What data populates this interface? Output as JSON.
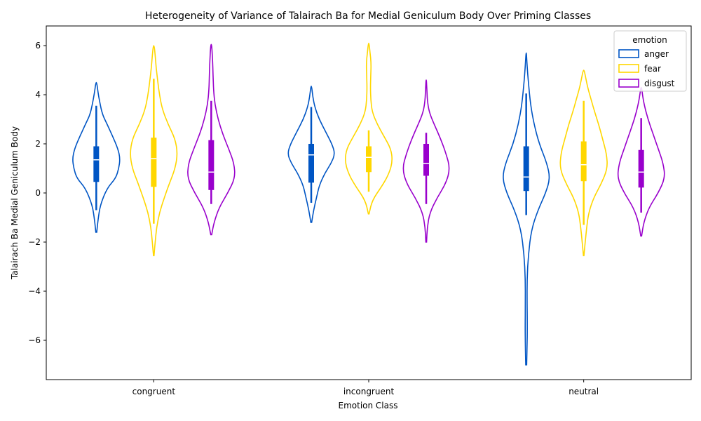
{
  "chart_data": {
    "type": "violin",
    "title": "Heterogeneity of Variance of Talairach Ba for Medial Geniculum Body Over Priming Classes",
    "xlabel": "Emotion Class",
    "ylabel": "Talairach Ba Medial Geniculum Body",
    "categories": [
      "congruent",
      "incongruent",
      "neutral"
    ],
    "ylim": [
      -7.6,
      6.8
    ],
    "yticks": [
      -6,
      -4,
      -2,
      0,
      2,
      4,
      6
    ],
    "legend": {
      "title": "emotion",
      "position": "top-right"
    },
    "grid": false,
    "series": [
      {
        "name": "anger",
        "color": "#0055c4",
        "groups": [
          {
            "category": "congruent",
            "min": -1.6,
            "max": 4.5,
            "median": 1.35,
            "q1": 0.45,
            "q3": 1.9,
            "whisker_low": -0.7,
            "whisker_high": 3.55,
            "density": [
              [
                -1.6,
                0.01
              ],
              [
                -1.1,
                0.04
              ],
              [
                -0.5,
                0.09
              ],
              [
                0.2,
                0.25
              ],
              [
                0.6,
                0.45
              ],
              [
                1.0,
                0.52
              ],
              [
                1.4,
                0.55
              ],
              [
                1.8,
                0.5
              ],
              [
                2.3,
                0.38
              ],
              [
                2.8,
                0.25
              ],
              [
                3.2,
                0.14
              ],
              [
                3.7,
                0.08
              ],
              [
                4.1,
                0.04
              ],
              [
                4.5,
                0.01
              ]
            ]
          },
          {
            "category": "incongruent",
            "min": -1.2,
            "max": 4.35,
            "median": 1.55,
            "q1": 0.42,
            "q3": 2.0,
            "whisker_low": -0.4,
            "whisker_high": 3.5,
            "density": [
              [
                -1.2,
                0.01
              ],
              [
                -0.7,
                0.06
              ],
              [
                -0.2,
                0.13
              ],
              [
                0.3,
                0.2
              ],
              [
                0.8,
                0.34
              ],
              [
                1.2,
                0.5
              ],
              [
                1.6,
                0.6
              ],
              [
                2.0,
                0.52
              ],
              [
                2.5,
                0.36
              ],
              [
                3.0,
                0.2
              ],
              [
                3.5,
                0.09
              ],
              [
                3.9,
                0.04
              ],
              [
                4.35,
                0.01
              ]
            ]
          },
          {
            "category": "neutral",
            "min": -7.0,
            "max": 5.7,
            "median": 0.65,
            "q1": 0.08,
            "q3": 1.9,
            "whisker_low": -0.9,
            "whisker_high": 4.05,
            "density": [
              [
                -7.0,
                0.01
              ],
              [
                -6.2,
                0.02
              ],
              [
                -5.5,
                0.025
              ],
              [
                -4.5,
                0.02
              ],
              [
                -3.5,
                0.02
              ],
              [
                -2.5,
                0.05
              ],
              [
                -1.5,
                0.12
              ],
              [
                -0.7,
                0.27
              ],
              [
                0.0,
                0.45
              ],
              [
                0.6,
                0.55
              ],
              [
                1.2,
                0.48
              ],
              [
                2.0,
                0.3
              ],
              [
                2.8,
                0.18
              ],
              [
                3.6,
                0.1
              ],
              [
                4.5,
                0.05
              ],
              [
                5.2,
                0.02
              ],
              [
                5.7,
                0.005
              ]
            ]
          }
        ]
      },
      {
        "name": "fear",
        "color": "#ffd700",
        "groups": [
          {
            "category": "congruent",
            "min": -2.55,
            "max": 6.0,
            "median": 1.4,
            "q1": 0.25,
            "q3": 2.25,
            "whisker_low": -1.25,
            "whisker_high": 4.65,
            "density": [
              [
                -2.55,
                0.005
              ],
              [
                -2.0,
                0.03
              ],
              [
                -1.4,
                0.06
              ],
              [
                -0.8,
                0.12
              ],
              [
                -0.2,
                0.22
              ],
              [
                0.4,
                0.33
              ],
              [
                1.0,
                0.45
              ],
              [
                1.6,
                0.5
              ],
              [
                2.2,
                0.45
              ],
              [
                2.8,
                0.3
              ],
              [
                3.4,
                0.18
              ],
              [
                4.0,
                0.12
              ],
              [
                4.6,
                0.08
              ],
              [
                5.1,
                0.05
              ],
              [
                5.6,
                0.03
              ],
              [
                6.0,
                0.01
              ]
            ]
          },
          {
            "category": "incongruent",
            "min": -0.85,
            "max": 6.1,
            "median": 1.45,
            "q1": 0.85,
            "q3": 1.9,
            "whisker_low": 0.05,
            "whisker_high": 2.55,
            "density": [
              [
                -0.85,
                0.01
              ],
              [
                -0.3,
                0.1
              ],
              [
                0.3,
                0.4
              ],
              [
                0.8,
                0.6
              ],
              [
                1.3,
                0.7
              ],
              [
                1.8,
                0.65
              ],
              [
                2.3,
                0.45
              ],
              [
                2.8,
                0.25
              ],
              [
                3.3,
                0.1
              ],
              [
                3.8,
                0.06
              ],
              [
                4.3,
                0.05
              ],
              [
                4.8,
                0.06
              ],
              [
                5.3,
                0.07
              ],
              [
                5.7,
                0.04
              ],
              [
                6.1,
                0.01
              ]
            ]
          },
          {
            "category": "neutral",
            "min": -2.55,
            "max": 5.0,
            "median": 1.15,
            "q1": 0.48,
            "q3": 2.1,
            "whisker_low": -1.3,
            "whisker_high": 3.75,
            "density": [
              [
                -2.55,
                0.005
              ],
              [
                -2.0,
                0.03
              ],
              [
                -1.4,
                0.06
              ],
              [
                -0.8,
                0.1
              ],
              [
                -0.2,
                0.2
              ],
              [
                0.4,
                0.36
              ],
              [
                1.0,
                0.48
              ],
              [
                1.6,
                0.46
              ],
              [
                2.2,
                0.38
              ],
              [
                2.8,
                0.3
              ],
              [
                3.3,
                0.22
              ],
              [
                3.8,
                0.15
              ],
              [
                4.3,
                0.08
              ],
              [
                4.7,
                0.04
              ],
              [
                5.0,
                0.01
              ]
            ]
          }
        ]
      },
      {
        "name": "disgust",
        "color": "#9900cc",
        "groups": [
          {
            "category": "congruent",
            "min": -1.7,
            "max": 6.05,
            "median": 0.85,
            "q1": 0.12,
            "q3": 2.15,
            "whisker_low": -0.45,
            "whisker_high": 3.75,
            "density": [
              [
                -1.7,
                0.01
              ],
              [
                -1.2,
                0.06
              ],
              [
                -0.6,
                0.17
              ],
              [
                0.0,
                0.36
              ],
              [
                0.6,
                0.52
              ],
              [
                1.2,
                0.5
              ],
              [
                1.8,
                0.38
              ],
              [
                2.4,
                0.25
              ],
              [
                3.0,
                0.15
              ],
              [
                3.6,
                0.08
              ],
              [
                4.2,
                0.05
              ],
              [
                4.8,
                0.04
              ],
              [
                5.4,
                0.03
              ],
              [
                6.05,
                0.01
              ]
            ]
          },
          {
            "category": "incongruent",
            "min": -2.0,
            "max": 4.6,
            "median": 1.2,
            "q1": 0.7,
            "q3": 2.0,
            "whisker_low": -0.45,
            "whisker_high": 2.45,
            "density": [
              [
                -2.0,
                0.01
              ],
              [
                -1.4,
                0.03
              ],
              [
                -0.8,
                0.1
              ],
              [
                -0.2,
                0.3
              ],
              [
                0.4,
                0.55
              ],
              [
                1.0,
                0.66
              ],
              [
                1.6,
                0.55
              ],
              [
                2.2,
                0.4
              ],
              [
                2.8,
                0.22
              ],
              [
                3.3,
                0.08
              ],
              [
                3.8,
                0.03
              ],
              [
                4.2,
                0.02
              ],
              [
                4.6,
                0.005
              ]
            ]
          },
          {
            "category": "neutral",
            "min": -1.75,
            "max": 4.3,
            "median": 0.85,
            "q1": 0.22,
            "q3": 1.75,
            "whisker_low": -0.8,
            "whisker_high": 3.05,
            "density": [
              [
                -1.75,
                0.01
              ],
              [
                -1.2,
                0.06
              ],
              [
                -0.6,
                0.18
              ],
              [
                0.0,
                0.4
              ],
              [
                0.6,
                0.56
              ],
              [
                1.2,
                0.52
              ],
              [
                1.8,
                0.4
              ],
              [
                2.4,
                0.28
              ],
              [
                3.0,
                0.16
              ],
              [
                3.6,
                0.07
              ],
              [
                4.0,
                0.03
              ],
              [
                4.3,
                0.01
              ]
            ]
          }
        ]
      }
    ]
  }
}
